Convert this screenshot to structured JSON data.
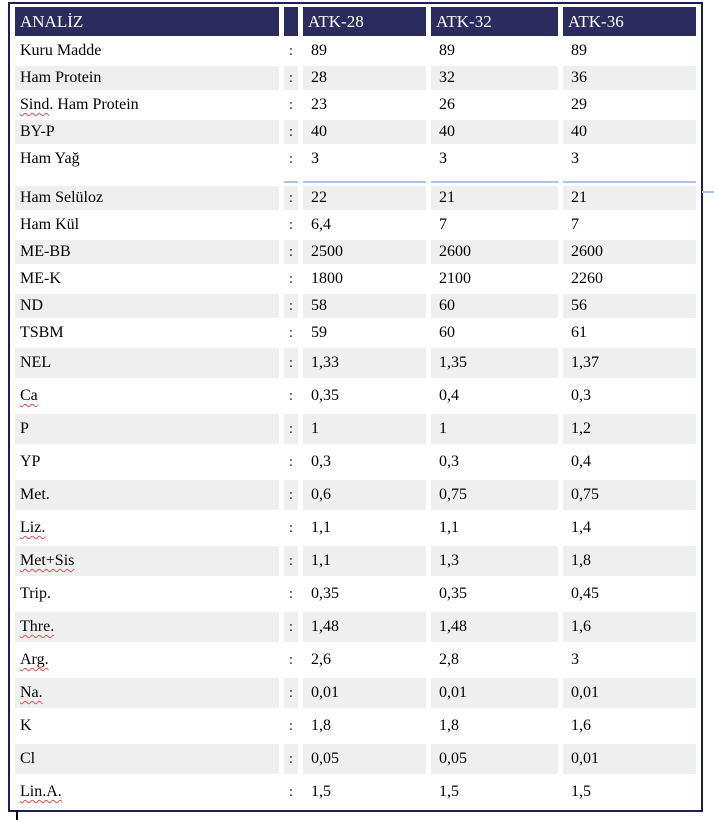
{
  "table": {
    "header": {
      "title": "ANALİZ",
      "columns": [
        "ATK-28",
        "ATK-32",
        "ATK-36"
      ]
    },
    "separator": ":",
    "rows": [
      {
        "pre": "Kuru Madde",
        "err": "",
        "post": "",
        "values": [
          "89",
          "89",
          "89"
        ]
      },
      {
        "pre": "Ham Protein",
        "err": "",
        "post": "",
        "values": [
          "28",
          "32",
          "36"
        ]
      },
      {
        "pre": "",
        "err": "Sind",
        "post": ". Ham Protein",
        "values": [
          "23",
          "26",
          "29"
        ]
      },
      {
        "pre": "BY-P",
        "err": "",
        "post": "",
        "values": [
          "40",
          "40",
          "40"
        ]
      },
      {
        "pre": "Ham Yağ",
        "err": "",
        "post": "",
        "values": [
          "3",
          "3",
          "3"
        ]
      },
      {
        "pre": "Ham Selüloz",
        "err": "",
        "post": "",
        "values": [
          "22",
          "21",
          "21"
        ]
      },
      {
        "pre": "Ham Kül",
        "err": "",
        "post": "",
        "values": [
          "6,4",
          "7",
          "7"
        ]
      },
      {
        "pre": "ME-BB",
        "err": "",
        "post": "",
        "values": [
          "2500",
          "2600",
          "2600"
        ]
      },
      {
        "pre": "ME-K",
        "err": "",
        "post": "",
        "values": [
          "1800",
          "2100",
          "2260"
        ]
      },
      {
        "pre": "ND",
        "err": "",
        "post": "",
        "values": [
          "58",
          "60",
          "56"
        ]
      },
      {
        "pre": "TSBM",
        "err": "",
        "post": "",
        "values": [
          "59",
          "60",
          "61"
        ]
      },
      {
        "pre": "NEL",
        "err": "",
        "post": "",
        "values": [
          "1,33",
          "1,35",
          "1,37"
        ]
      },
      {
        "pre": "",
        "err": "Ca",
        "post": "",
        "values": [
          "0,35",
          "0,4",
          "0,3"
        ]
      },
      {
        "pre": "P",
        "err": "",
        "post": "",
        "values": [
          "1",
          "1",
          "1,2"
        ]
      },
      {
        "pre": "YP",
        "err": "",
        "post": "",
        "values": [
          "0,3",
          "0,3",
          "0,4"
        ]
      },
      {
        "pre": "Met.",
        "err": "",
        "post": "",
        "values": [
          "0,6",
          "0,75",
          "0,75"
        ]
      },
      {
        "pre": "",
        "err": "Liz.",
        "post": "",
        "values": [
          "1,1",
          "1,1",
          "1,4"
        ]
      },
      {
        "pre": "",
        "err": "Met+Sis",
        "post": "",
        "values": [
          "1,1",
          "1,3",
          "1,8"
        ]
      },
      {
        "pre": "Trip.",
        "err": "",
        "post": "",
        "values": [
          "0,35",
          "0,35",
          "0,45"
        ]
      },
      {
        "pre": "",
        "err": "Thre.",
        "post": "",
        "values": [
          "1,48",
          "1,48",
          "1,6"
        ]
      },
      {
        "pre": "",
        "err": "Arg.",
        "post": "",
        "values": [
          "2,6",
          "2,8",
          "3"
        ]
      },
      {
        "pre": "",
        "err": "Na.",
        "post": "",
        "values": [
          "0,01",
          "0,01",
          "0,01"
        ]
      },
      {
        "pre": "K",
        "err": "",
        "post": "",
        "values": [
          "1,8",
          "1,8",
          "1,6"
        ]
      },
      {
        "pre": "Cl",
        "err": "",
        "post": "",
        "values": [
          "0,05",
          "0,05",
          "0,01"
        ]
      },
      {
        "pre": "",
        "err": "Lin.A.",
        "post": "",
        "values": [
          "1,5",
          "1,5",
          "1,5"
        ]
      }
    ]
  },
  "artifacts": {
    "page_break_before_row": 5,
    "caret_visible": true
  },
  "colors": {
    "header_bg": "#2B2B5E",
    "header_text": "#FFFFFF",
    "outer_border": "#1E1E55",
    "shaded_row": "#EFEFEF",
    "page_break_line": "#A6C5E8",
    "spellcheck_underline": "#E05252",
    "body_text": "#000000"
  }
}
